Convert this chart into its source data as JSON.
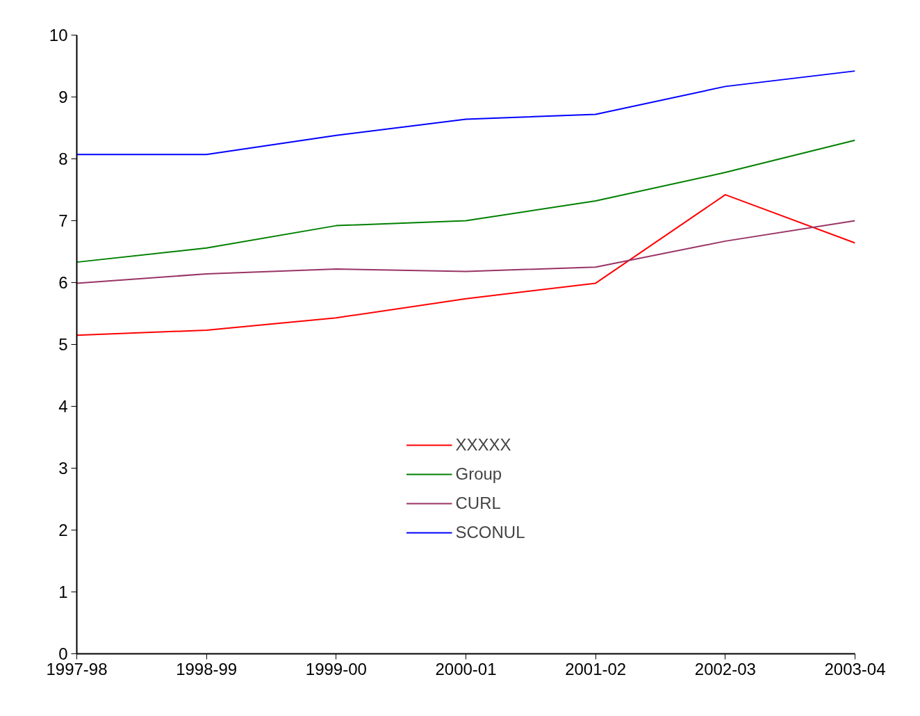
{
  "chart_data": {
    "type": "line",
    "categories": [
      "1997-98",
      "1998-99",
      "1999-00",
      "2000-01",
      "2001-02",
      "2002-03",
      "2003-04"
    ],
    "ylim": [
      0,
      10
    ],
    "yticks": [
      0,
      1,
      2,
      3,
      4,
      5,
      6,
      7,
      8,
      9,
      10
    ],
    "grid": false,
    "legend": "bottom",
    "marker": "none",
    "line_style": "solid",
    "series": [
      {
        "name": "XXXXX",
        "color": "#ff0000",
        "values": [
          5.15,
          5.23,
          5.43,
          5.74,
          5.99,
          7.42,
          6.64
        ]
      },
      {
        "name": "Group",
        "color": "#008000",
        "values": [
          6.33,
          6.56,
          6.92,
          7.0,
          7.32,
          7.78,
          8.3
        ]
      },
      {
        "name": "CURL",
        "color": "#993366",
        "values": [
          5.99,
          6.14,
          6.22,
          6.18,
          6.25,
          6.67,
          7.0
        ]
      },
      {
        "name": "SCONUL",
        "color": "#0000ff",
        "values": [
          8.07,
          8.07,
          8.38,
          8.64,
          8.72,
          9.17,
          9.42
        ]
      }
    ]
  }
}
